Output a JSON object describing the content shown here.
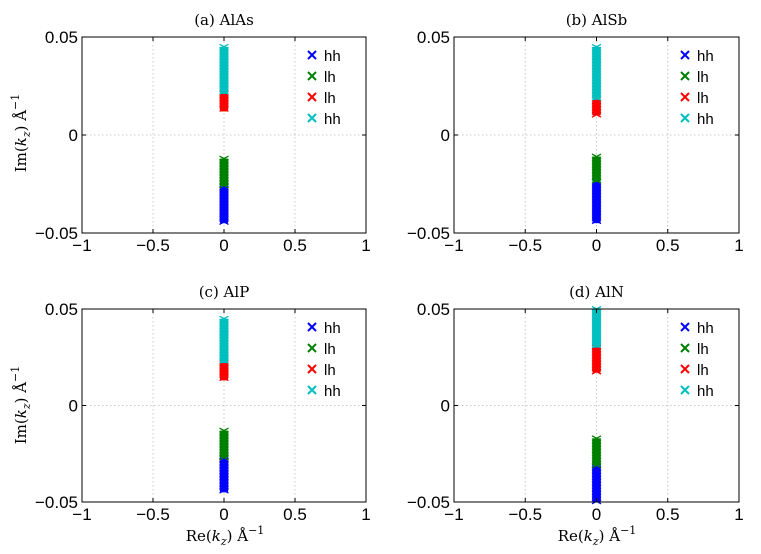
{
  "figure": {
    "ylabel_html": "Im(k_z) Å^-1",
    "xlabel_html": "Re(k_z) Å^-1"
  },
  "chart_data": [
    {
      "type": "scatter",
      "title": "(a) AlAs",
      "xlim": [
        -1,
        1
      ],
      "ylim": [
        -0.05,
        0.05
      ],
      "xticks": [
        "−1",
        "−0.5",
        "0",
        "0.5",
        "1"
      ],
      "yticks": [
        "0.05",
        "0",
        "−0.05"
      ],
      "grid": true,
      "legend_position": "top-right",
      "series": [
        {
          "name": "hh",
          "color": "#0000ff",
          "marker": "x",
          "x": 0,
          "y_range": [
            -0.045,
            -0.026
          ]
        },
        {
          "name": "lh",
          "color": "#008000",
          "marker": "x",
          "x": 0,
          "y_range": [
            -0.026,
            -0.012
          ]
        },
        {
          "name": "lh",
          "color": "#ff0000",
          "marker": "x",
          "x": 0,
          "y_range": [
            0.012,
            0.021
          ]
        },
        {
          "name": "hh",
          "color": "#00bfbf",
          "marker": "x",
          "x": 0,
          "y_range": [
            0.021,
            0.045
          ]
        }
      ]
    },
    {
      "type": "scatter",
      "title": "(b) AlSb",
      "xlim": [
        -1,
        1
      ],
      "ylim": [
        -0.05,
        0.05
      ],
      "xticks": [
        "−1",
        "−0.5",
        "0",
        "0.5",
        "1"
      ],
      "yticks": [
        "0.05",
        "0",
        "−0.05"
      ],
      "grid": true,
      "legend_position": "top-right",
      "series": [
        {
          "name": "hh",
          "color": "#0000ff",
          "marker": "x",
          "x": 0,
          "y_range": [
            -0.045,
            -0.024
          ]
        },
        {
          "name": "lh",
          "color": "#008000",
          "marker": "x",
          "x": 0,
          "y_range": [
            -0.024,
            -0.011
          ]
        },
        {
          "name": "lh",
          "color": "#ff0000",
          "marker": "x",
          "x": 0,
          "y_range": [
            0.01,
            0.018
          ]
        },
        {
          "name": "hh",
          "color": "#00bfbf",
          "marker": "x",
          "x": 0,
          "y_range": [
            0.018,
            0.045
          ]
        }
      ]
    },
    {
      "type": "scatter",
      "title": "(c) AlP",
      "xlim": [
        -1,
        1
      ],
      "ylim": [
        -0.05,
        0.05
      ],
      "xticks": [
        "−1",
        "−0.5",
        "0",
        "0.5",
        "1"
      ],
      "yticks": [
        "0.05",
        "0",
        "−0.05"
      ],
      "grid": true,
      "legend_position": "top-right",
      "series": [
        {
          "name": "hh",
          "color": "#0000ff",
          "marker": "x",
          "x": 0,
          "y_range": [
            -0.045,
            -0.027
          ]
        },
        {
          "name": "lh",
          "color": "#008000",
          "marker": "x",
          "x": 0,
          "y_range": [
            -0.027,
            -0.013
          ]
        },
        {
          "name": "lh",
          "color": "#ff0000",
          "marker": "x",
          "x": 0,
          "y_range": [
            0.013,
            0.022
          ]
        },
        {
          "name": "hh",
          "color": "#00bfbf",
          "marker": "x",
          "x": 0,
          "y_range": [
            0.022,
            0.045
          ]
        }
      ]
    },
    {
      "type": "scatter",
      "title": "(d) AlN",
      "xlim": [
        -1,
        1
      ],
      "ylim": [
        -0.05,
        0.05
      ],
      "xticks": [
        "−1",
        "−0.5",
        "0",
        "0.5",
        "1"
      ],
      "yticks": [
        "0.05",
        "0",
        "−0.05"
      ],
      "grid": true,
      "legend_position": "top-right",
      "series": [
        {
          "name": "hh",
          "color": "#0000ff",
          "marker": "x",
          "x": 0,
          "y_range": [
            -0.05,
            -0.031
          ]
        },
        {
          "name": "lh",
          "color": "#008000",
          "marker": "x",
          "x": 0,
          "y_range": [
            -0.031,
            -0.017
          ]
        },
        {
          "name": "lh",
          "color": "#ff0000",
          "marker": "x",
          "x": 0,
          "y_range": [
            0.017,
            0.03
          ]
        },
        {
          "name": "hh",
          "color": "#00bfbf",
          "marker": "x",
          "x": 0,
          "y_range": [
            0.03,
            0.05
          ]
        }
      ]
    }
  ]
}
